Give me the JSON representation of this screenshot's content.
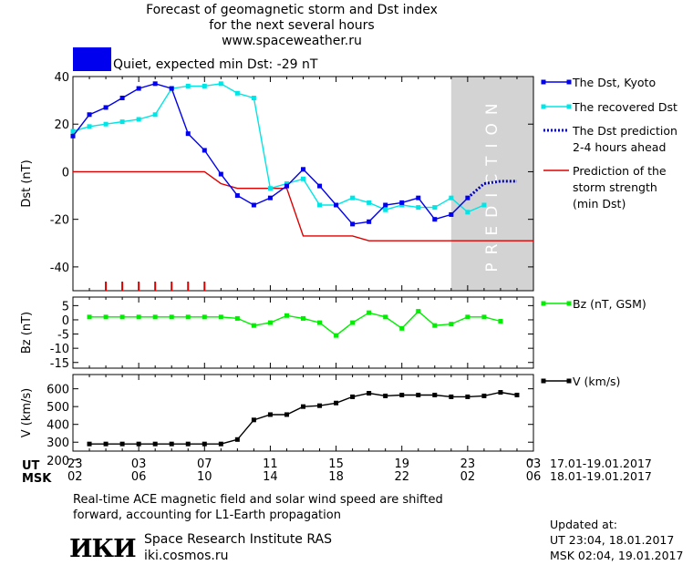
{
  "header": {
    "title_line1": "Forecast of geomagnetic storm and Dst index",
    "title_line2": "for the next several hours",
    "site": "www.spaceweather.ru"
  },
  "status": {
    "color": "#0000ee",
    "text": "Quiet, expected min Dst: -29 nT"
  },
  "chart_data": [
    {
      "type": "line",
      "ylabel": "Dst (nT)",
      "ylim": [
        -50,
        40
      ],
      "yticks": [
        40,
        20,
        0,
        -20,
        -40
      ],
      "prediction_label": "PREDICTION",
      "prediction_x_start": 23.0,
      "legend_position": "right",
      "series": [
        {
          "name": "The Dst, Kyoto",
          "color": "#0000ee",
          "marker": "square",
          "points": [
            [
              0.0,
              15
            ],
            [
              1.0,
              24
            ],
            [
              2.0,
              27
            ],
            [
              3.0,
              31
            ],
            [
              4.0,
              35
            ],
            [
              5.0,
              37
            ],
            [
              6.0,
              35
            ],
            [
              7.0,
              16
            ],
            [
              8.0,
              9
            ],
            [
              9.0,
              -1
            ],
            [
              10.0,
              -10
            ],
            [
              11.0,
              -14
            ],
            [
              12.0,
              -11
            ],
            [
              13.0,
              -6
            ],
            [
              14.0,
              1
            ],
            [
              15.0,
              -6
            ],
            [
              16.0,
              -14
            ],
            [
              17.0,
              -22
            ],
            [
              18.0,
              -21
            ],
            [
              19.0,
              -14
            ],
            [
              20.0,
              -13
            ],
            [
              21.0,
              -11
            ],
            [
              22.0,
              -20
            ],
            [
              23.0,
              -18
            ],
            [
              24.0,
              -11
            ]
          ]
        },
        {
          "name": "The recovered Dst",
          "color": "#00e5e5",
          "marker": "square",
          "points": [
            [
              0.0,
              17
            ],
            [
              1.0,
              19
            ],
            [
              2.0,
              20
            ],
            [
              3.0,
              21
            ],
            [
              4.0,
              22
            ],
            [
              5.0,
              24
            ],
            [
              6.0,
              35
            ],
            [
              7.0,
              36
            ],
            [
              8.0,
              36
            ],
            [
              9.0,
              37
            ],
            [
              10.0,
              33
            ],
            [
              11.0,
              31
            ],
            [
              12.0,
              -7
            ],
            [
              13.0,
              -5
            ],
            [
              14.0,
              -3
            ],
            [
              15.0,
              -14
            ],
            [
              16.0,
              -14
            ],
            [
              17.0,
              -11
            ],
            [
              18.0,
              -13
            ],
            [
              19.0,
              -16
            ],
            [
              20.0,
              -14
            ],
            [
              21.0,
              -15
            ],
            [
              22.0,
              -15
            ],
            [
              23.0,
              -11
            ],
            [
              24.0,
              -17
            ],
            [
              25.0,
              -14
            ]
          ]
        },
        {
          "name": "The Dst prediction",
          "name_line2": "2-4 hours ahead",
          "color": "#0000cc",
          "style": "dotted",
          "points": [
            [
              24.0,
              -11
            ],
            [
              25.0,
              -5
            ],
            [
              26.0,
              -4
            ],
            [
              27.0,
              -4
            ]
          ]
        },
        {
          "name": "Prediction of the",
          "name_line2": "storm strength",
          "name_line3": "(min Dst)",
          "color": "#dd0000",
          "style": "step",
          "points": [
            [
              0.0,
              0
            ],
            [
              8.0,
              0
            ],
            [
              9.0,
              -5
            ],
            [
              10.0,
              -7
            ],
            [
              13.0,
              -7
            ],
            [
              14.0,
              -27
            ],
            [
              17.0,
              -27
            ],
            [
              18.0,
              -29
            ],
            [
              28.0,
              -29
            ]
          ]
        }
      ],
      "impulse_marks": {
        "color": "#dd0000",
        "x": [
          2.0,
          3.0,
          4.0,
          5.0,
          6.0,
          7.0,
          8.0
        ]
      }
    },
    {
      "type": "line",
      "ylabel": "Bz (nT)",
      "ylim": [
        -17,
        8
      ],
      "yticks": [
        5,
        0,
        -5,
        -10,
        -15
      ],
      "series": [
        {
          "name": "Bz (nT, GSM)",
          "color": "#00ee00",
          "marker": "square",
          "points": [
            [
              1.0,
              1
            ],
            [
              2.0,
              1
            ],
            [
              3.0,
              1
            ],
            [
              4.0,
              1
            ],
            [
              5.0,
              1
            ],
            [
              6.0,
              1
            ],
            [
              7.0,
              1
            ],
            [
              8.0,
              1
            ],
            [
              9.0,
              1
            ],
            [
              10.0,
              0.5
            ],
            [
              11.0,
              -2
            ],
            [
              12.0,
              -1
            ],
            [
              13.0,
              1.5
            ],
            [
              14.0,
              0.5
            ],
            [
              15.0,
              -1
            ],
            [
              16.0,
              -5.5
            ],
            [
              17.0,
              -1
            ],
            [
              18.0,
              2.5
            ],
            [
              19.0,
              1
            ],
            [
              20.0,
              -3
            ],
            [
              21.0,
              3
            ],
            [
              22.0,
              -2
            ],
            [
              23.0,
              -1.5
            ],
            [
              24.0,
              1
            ],
            [
              25.0,
              1
            ],
            [
              26.0,
              -0.5
            ]
          ]
        }
      ]
    },
    {
      "type": "line",
      "ylabel": "V (km/s)",
      "ylim": [
        250,
        680
      ],
      "yticks": [
        600,
        500,
        400,
        300,
        200
      ],
      "series": [
        {
          "name": "V (km/s)",
          "color": "#000000",
          "marker": "square",
          "points": [
            [
              1.0,
              290
            ],
            [
              2.0,
              290
            ],
            [
              3.0,
              290
            ],
            [
              4.0,
              290
            ],
            [
              5.0,
              290
            ],
            [
              6.0,
              290
            ],
            [
              7.0,
              290
            ],
            [
              8.0,
              290
            ],
            [
              9.0,
              290
            ],
            [
              10.0,
              315
            ],
            [
              11.0,
              425
            ],
            [
              12.0,
              455
            ],
            [
              13.0,
              455
            ],
            [
              14.0,
              500
            ],
            [
              15.0,
              505
            ],
            [
              16.0,
              520
            ],
            [
              17.0,
              555
            ],
            [
              18.0,
              575
            ],
            [
              19.0,
              560
            ],
            [
              20.0,
              565
            ],
            [
              21.0,
              565
            ],
            [
              22.0,
              565
            ],
            [
              23.0,
              555
            ],
            [
              24.0,
              555
            ],
            [
              25.0,
              560
            ],
            [
              26.0,
              580
            ],
            [
              27.0,
              565
            ]
          ]
        }
      ]
    }
  ],
  "time_axis": {
    "ut_label": "UT",
    "msk_label": "MSK",
    "ut_ticks": [
      "23",
      "03",
      "07",
      "11",
      "15",
      "19",
      "23",
      "03"
    ],
    "msk_ticks": [
      "02",
      "06",
      "10",
      "14",
      "18",
      "22",
      "02",
      "06"
    ],
    "ut_range": "17.01-19.01.2017",
    "msk_range": "18.01-19.01.2017"
  },
  "footnote": {
    "line1": "Real-time ACE magnetic field and solar wind speed are shifted",
    "line2": "forward, accounting for L1-Earth propagation"
  },
  "institute": {
    "logo": "ИКИ",
    "name": "Space Research Institute RAS",
    "site": "iki.cosmos.ru"
  },
  "updated": {
    "label": "Updated at:",
    "ut": "UT   23:04, 18.01.2017",
    "msk": "MSK 02:04, 19.01.2017"
  }
}
